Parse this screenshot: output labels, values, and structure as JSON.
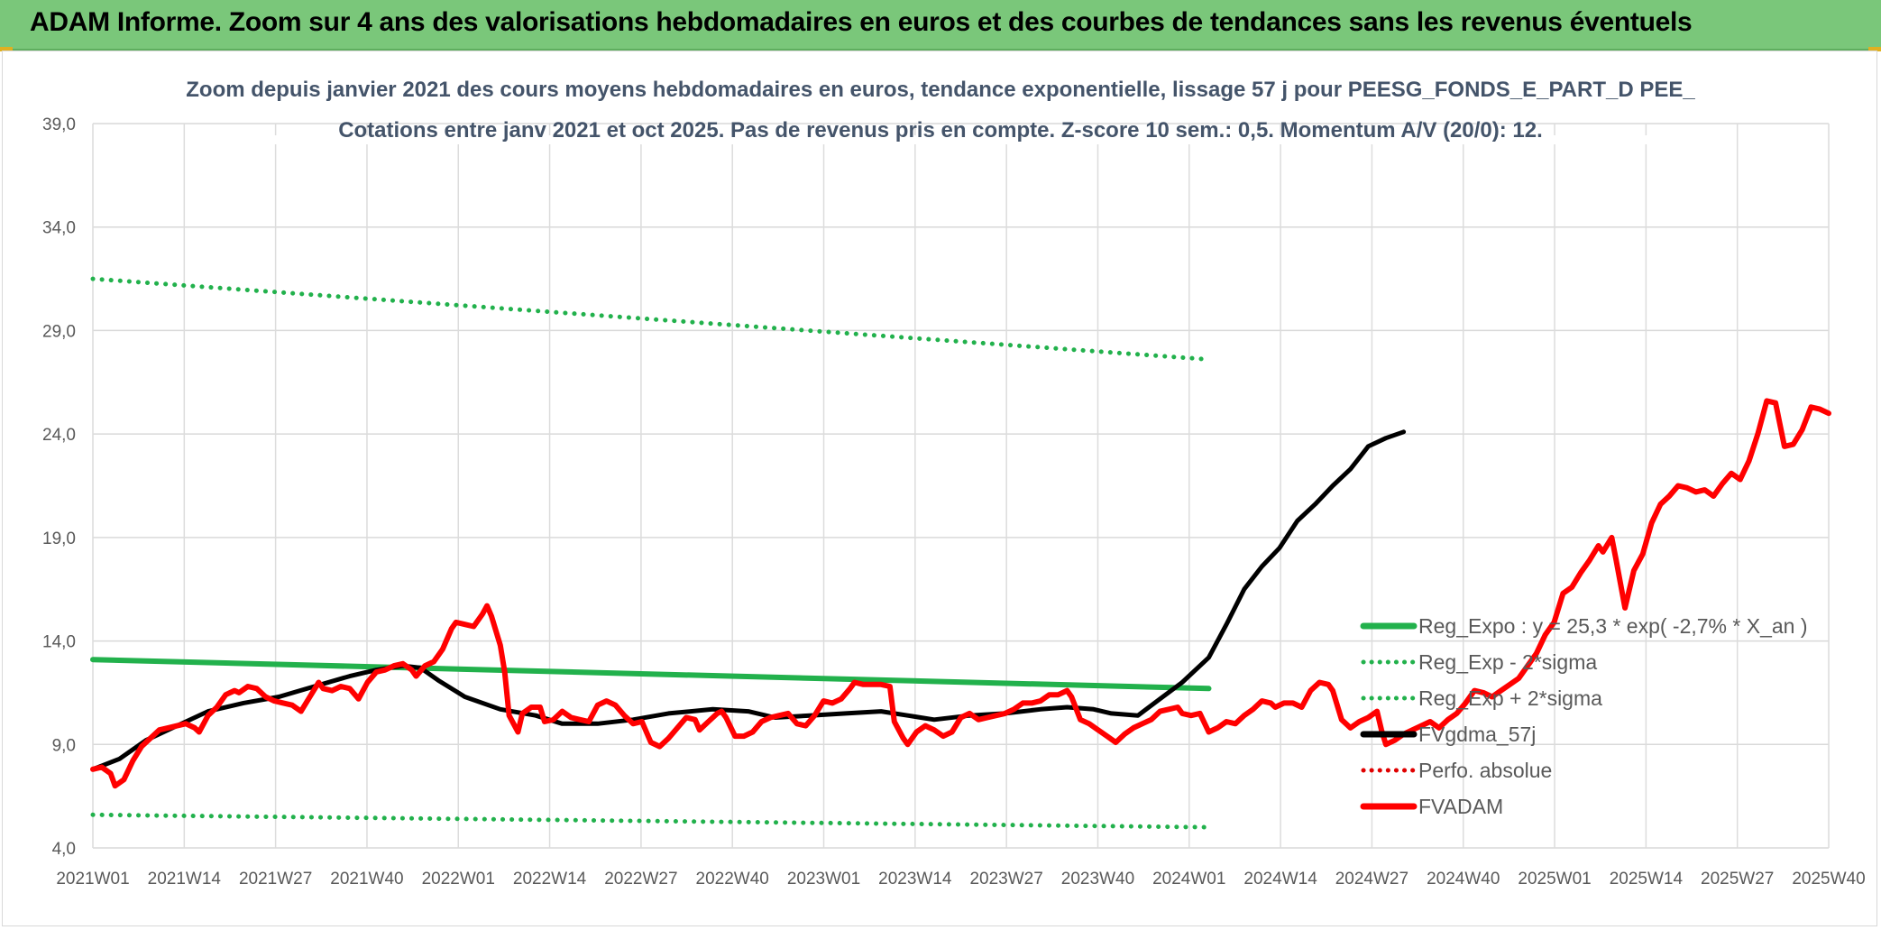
{
  "banner": {
    "title": "ADAM Informe. Zoom sur 4 ans des valorisations hebdomadaires en euros et des courbes de tendances sans les revenus éventuels"
  },
  "chart_data": {
    "type": "line",
    "title": "Zoom depuis janvier 2021 des cours moyens hebdomadaires en euros, tendance exponentielle, lissage 57 j pour PEESG_FONDS_E_PART_D PEE_",
    "subtitle": "Cotations entre janv 2021 et oct 2025. Pas de revenus pris en compte. Z-score 10 sem.: 0,5. Momentum A/V (20/0): 12.",
    "ylim": [
      4.0,
      39.0
    ],
    "yticks": [
      "4,0",
      "9,0",
      "14,0",
      "19,0",
      "24,0",
      "29,0",
      "34,0",
      "39,0"
    ],
    "xticks": [
      "2021W01",
      "2021W14",
      "2021W27",
      "2021W40",
      "2022W01",
      "2022W14",
      "2022W27",
      "2022W40",
      "2023W01",
      "2023W14",
      "2023W27",
      "2023W40",
      "2024W01",
      "2024W14",
      "2024W27",
      "2024W40",
      "2025W01",
      "2025W14",
      "2025W27",
      "2025W40"
    ],
    "grid": true,
    "legend_position": "bottom-right",
    "series": [
      {
        "name": "Reg_Expo : y = 25,3 * exp( -2,7% *  X_an )",
        "color": "#22b14c",
        "style": "solid",
        "points": [
          [
            0,
            13.1
          ],
          [
            252,
            11.7
          ]
        ]
      },
      {
        "name": "Reg_Exp - 2*sigma",
        "color": "#22b14c",
        "style": "dotted",
        "points": [
          [
            0,
            5.6
          ],
          [
            252,
            5.0
          ]
        ]
      },
      {
        "name": "Reg_Exp + 2*sigma",
        "color": "#22b14c",
        "style": "dotted",
        "points": [
          [
            0,
            31.5
          ],
          [
            252,
            27.6
          ]
        ]
      },
      {
        "name": "FVgdma_57j",
        "color": "#000000",
        "style": "solid",
        "points": [
          [
            0,
            7.8
          ],
          [
            6,
            8.3
          ],
          [
            12,
            9.2
          ],
          [
            18,
            9.8
          ],
          [
            26,
            10.6
          ],
          [
            34,
            11.0
          ],
          [
            42,
            11.3
          ],
          [
            50,
            11.8
          ],
          [
            58,
            12.3
          ],
          [
            64,
            12.6
          ],
          [
            70,
            12.8
          ],
          [
            74,
            12.7
          ],
          [
            78,
            12.1
          ],
          [
            84,
            11.3
          ],
          [
            92,
            10.7
          ],
          [
            100,
            10.4
          ],
          [
            106,
            10.0
          ],
          [
            114,
            10.0
          ],
          [
            122,
            10.2
          ],
          [
            130,
            10.5
          ],
          [
            140,
            10.7
          ],
          [
            148,
            10.6
          ],
          [
            154,
            10.3
          ],
          [
            162,
            10.4
          ],
          [
            170,
            10.5
          ],
          [
            178,
            10.6
          ],
          [
            184,
            10.4
          ],
          [
            190,
            10.2
          ],
          [
            198,
            10.4
          ],
          [
            206,
            10.5
          ],
          [
            214,
            10.7
          ],
          [
            220,
            10.8
          ],
          [
            226,
            10.7
          ],
          [
            230,
            10.5
          ],
          [
            236,
            10.4
          ],
          [
            241,
            11.2
          ],
          [
            246,
            12.0
          ],
          [
            252,
            13.2
          ],
          [
            256,
            14.8
          ],
          [
            260,
            16.5
          ],
          [
            264,
            17.6
          ],
          [
            268,
            18.5
          ],
          [
            272,
            19.8
          ],
          [
            276,
            20.6
          ],
          [
            280,
            21.5
          ],
          [
            284,
            22.3
          ],
          [
            288,
            23.4
          ],
          [
            292,
            23.8
          ],
          [
            296,
            24.1
          ]
        ]
      },
      {
        "name": "Perfo. absolue",
        "color": "#e00000",
        "style": "dotted",
        "points": []
      },
      {
        "name": "FVADAM",
        "color": "#ff0000",
        "style": "solid",
        "points": [
          [
            0,
            7.8
          ],
          [
            2,
            7.9
          ],
          [
            4,
            7.6
          ],
          [
            5,
            7.0
          ],
          [
            7,
            7.3
          ],
          [
            9,
            8.2
          ],
          [
            11,
            8.9
          ],
          [
            13,
            9.3
          ],
          [
            15,
            9.7
          ],
          [
            17,
            9.8
          ],
          [
            19,
            9.9
          ],
          [
            21,
            10.0
          ],
          [
            23,
            9.8
          ],
          [
            24,
            9.6
          ],
          [
            26,
            10.4
          ],
          [
            28,
            10.8
          ],
          [
            30,
            11.4
          ],
          [
            32,
            11.6
          ],
          [
            33,
            11.5
          ],
          [
            35,
            11.8
          ],
          [
            37,
            11.7
          ],
          [
            39,
            11.3
          ],
          [
            41,
            11.1
          ],
          [
            43,
            11.0
          ],
          [
            45,
            10.9
          ],
          [
            47,
            10.6
          ],
          [
            49,
            11.3
          ],
          [
            51,
            12.0
          ],
          [
            52,
            11.7
          ],
          [
            54,
            11.6
          ],
          [
            56,
            11.8
          ],
          [
            58,
            11.7
          ],
          [
            60,
            11.2
          ],
          [
            62,
            12.0
          ],
          [
            64,
            12.5
          ],
          [
            66,
            12.6
          ],
          [
            68,
            12.8
          ],
          [
            70,
            12.9
          ],
          [
            72,
            12.6
          ],
          [
            73,
            12.3
          ],
          [
            75,
            12.8
          ],
          [
            77,
            13.0
          ],
          [
            79,
            13.6
          ],
          [
            81,
            14.6
          ],
          [
            82,
            14.9
          ],
          [
            84,
            14.8
          ],
          [
            86,
            14.7
          ],
          [
            88,
            15.3
          ],
          [
            89,
            15.7
          ],
          [
            90,
            15.2
          ],
          [
            92,
            13.8
          ],
          [
            93,
            12.5
          ],
          [
            94,
            10.4
          ],
          [
            95,
            10.0
          ],
          [
            96,
            9.6
          ],
          [
            97,
            10.5
          ],
          [
            99,
            10.8
          ],
          [
            101,
            10.8
          ],
          [
            102,
            10.1
          ],
          [
            104,
            10.2
          ],
          [
            106,
            10.6
          ],
          [
            108,
            10.3
          ],
          [
            110,
            10.2
          ],
          [
            112,
            10.1
          ],
          [
            114,
            10.9
          ],
          [
            116,
            11.1
          ],
          [
            118,
            10.9
          ],
          [
            120,
            10.4
          ],
          [
            122,
            10.0
          ],
          [
            124,
            10.1
          ],
          [
            126,
            9.1
          ],
          [
            128,
            8.9
          ],
          [
            130,
            9.3
          ],
          [
            132,
            9.8
          ],
          [
            134,
            10.3
          ],
          [
            136,
            10.2
          ],
          [
            137,
            9.7
          ],
          [
            139,
            10.1
          ],
          [
            141,
            10.5
          ],
          [
            142,
            10.6
          ],
          [
            143,
            10.3
          ],
          [
            145,
            9.4
          ],
          [
            147,
            9.4
          ],
          [
            149,
            9.6
          ],
          [
            151,
            10.1
          ],
          [
            153,
            10.3
          ],
          [
            155,
            10.4
          ],
          [
            157,
            10.5
          ],
          [
            159,
            10.0
          ],
          [
            161,
            9.9
          ],
          [
            163,
            10.4
          ],
          [
            165,
            11.1
          ],
          [
            167,
            11.0
          ],
          [
            169,
            11.2
          ],
          [
            171,
            11.7
          ],
          [
            172,
            12.0
          ],
          [
            174,
            11.9
          ],
          [
            176,
            11.9
          ],
          [
            178,
            11.9
          ],
          [
            180,
            11.8
          ],
          [
            181,
            10.1
          ],
          [
            183,
            9.3
          ],
          [
            184,
            9.0
          ],
          [
            186,
            9.6
          ],
          [
            188,
            9.9
          ],
          [
            190,
            9.7
          ],
          [
            192,
            9.4
          ],
          [
            194,
            9.6
          ],
          [
            196,
            10.3
          ],
          [
            198,
            10.5
          ],
          [
            200,
            10.2
          ],
          [
            202,
            10.3
          ],
          [
            204,
            10.4
          ],
          [
            206,
            10.5
          ],
          [
            208,
            10.7
          ],
          [
            210,
            11.0
          ],
          [
            212,
            11.0
          ],
          [
            214,
            11.1
          ],
          [
            216,
            11.4
          ],
          [
            218,
            11.4
          ],
          [
            220,
            11.6
          ],
          [
            221,
            11.3
          ],
          [
            223,
            10.2
          ],
          [
            225,
            10.0
          ],
          [
            227,
            9.7
          ],
          [
            229,
            9.4
          ],
          [
            231,
            9.1
          ],
          [
            233,
            9.5
          ],
          [
            235,
            9.8
          ],
          [
            237,
            10.0
          ],
          [
            239,
            10.2
          ],
          [
            241,
            10.6
          ],
          [
            243,
            10.7
          ],
          [
            245,
            10.8
          ],
          [
            246,
            10.5
          ],
          [
            248,
            10.4
          ],
          [
            250,
            10.5
          ],
          [
            252,
            9.6
          ],
          [
            254,
            9.8
          ],
          [
            256,
            10.1
          ],
          [
            258,
            10.0
          ],
          [
            260,
            10.4
          ],
          [
            262,
            10.7
          ],
          [
            264,
            11.1
          ],
          [
            266,
            11.0
          ],
          [
            267,
            10.8
          ],
          [
            269,
            11.0
          ],
          [
            271,
            11.0
          ],
          [
            273,
            10.8
          ],
          [
            275,
            11.6
          ],
          [
            277,
            12.0
          ],
          [
            279,
            11.9
          ],
          [
            280,
            11.6
          ],
          [
            282,
            10.2
          ],
          [
            284,
            9.8
          ],
          [
            286,
            10.1
          ],
          [
            288,
            10.3
          ],
          [
            290,
            10.6
          ],
          [
            291,
            9.7
          ],
          [
            292,
            9.0
          ],
          [
            294,
            9.2
          ],
          [
            296,
            9.5
          ],
          [
            298,
            9.7
          ],
          [
            300,
            9.9
          ],
          [
            302,
            10.1
          ],
          [
            304,
            9.8
          ],
          [
            306,
            10.2
          ],
          [
            308,
            10.5
          ],
          [
            310,
            11.0
          ],
          [
            312,
            11.6
          ],
          [
            314,
            11.5
          ],
          [
            316,
            11.3
          ],
          [
            318,
            11.6
          ],
          [
            320,
            11.9
          ],
          [
            322,
            12.2
          ],
          [
            324,
            12.8
          ],
          [
            326,
            13.4
          ],
          [
            328,
            14.3
          ],
          [
            330,
            14.9
          ],
          [
            332,
            16.3
          ],
          [
            334,
            16.6
          ],
          [
            336,
            17.3
          ],
          [
            338,
            17.9
          ],
          [
            340,
            18.6
          ],
          [
            341,
            18.3
          ],
          [
            343,
            19.0
          ],
          [
            344,
            17.9
          ],
          [
            346,
            15.6
          ],
          [
            348,
            17.4
          ],
          [
            350,
            18.2
          ],
          [
            352,
            19.7
          ],
          [
            354,
            20.6
          ],
          [
            356,
            21.0
          ],
          [
            358,
            21.5
          ],
          [
            360,
            21.4
          ],
          [
            362,
            21.2
          ],
          [
            364,
            21.3
          ],
          [
            366,
            21.0
          ],
          [
            368,
            21.6
          ],
          [
            370,
            22.1
          ],
          [
            372,
            21.8
          ],
          [
            374,
            22.7
          ],
          [
            376,
            24.0
          ],
          [
            378,
            25.6
          ],
          [
            380,
            25.5
          ],
          [
            382,
            23.4
          ],
          [
            384,
            23.5
          ],
          [
            386,
            24.2
          ],
          [
            388,
            25.3
          ],
          [
            390,
            25.2
          ],
          [
            392,
            25.0
          ]
        ]
      }
    ],
    "x_index_domain": [
      0,
      392
    ]
  }
}
